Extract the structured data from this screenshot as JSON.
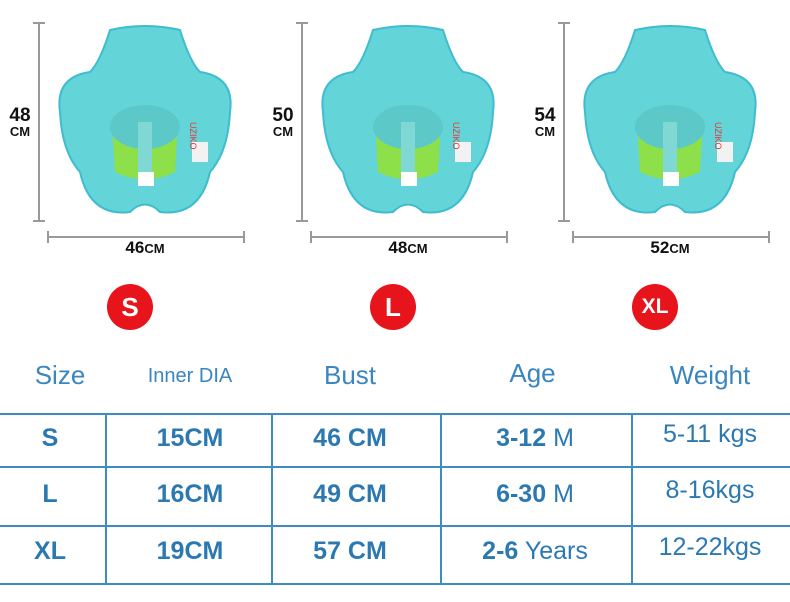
{
  "products": [
    {
      "height": "48",
      "height_unit": "CM",
      "width": "46",
      "width_unit": "CM",
      "size": "S"
    },
    {
      "height": "50",
      "height_unit": "CM",
      "width": "48",
      "width_unit": "CM",
      "size": "L"
    },
    {
      "height": "54",
      "height_unit": "CM",
      "width": "52",
      "width_unit": "CM",
      "size": "XL"
    }
  ],
  "colors": {
    "float": "#5fd6d6",
    "seat": "#8ee04a",
    "badge": "#e8141c",
    "table": "#3d8dc4"
  },
  "table": {
    "headers": [
      "Size",
      "Inner DIA",
      "Bust",
      "Age",
      "Weight"
    ],
    "rows": [
      {
        "size": "S",
        "inner": "15CM",
        "bust": "46 CM",
        "age_num": "3-12",
        "age_unit": "M",
        "weight": "5-11 kgs"
      },
      {
        "size": "L",
        "inner": "16CM",
        "bust": "49 CM",
        "age_num": "6-30",
        "age_unit": "M",
        "weight": "8-16kgs"
      },
      {
        "size": "XL",
        "inner": "19CM",
        "bust": "57 CM",
        "age_num": "2-6",
        "age_unit": "Years",
        "weight": "12-22kgs"
      }
    ]
  }
}
